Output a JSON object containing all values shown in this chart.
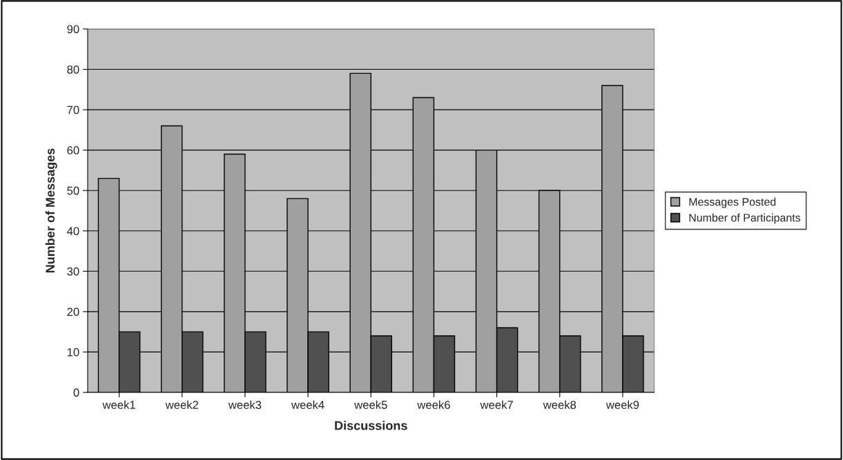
{
  "chart_data": {
    "type": "bar",
    "xlabel": "Discussions",
    "ylabel": "Number of Messages",
    "categories": [
      "week1",
      "week2",
      "week3",
      "week4",
      "week5",
      "week6",
      "week7",
      "week8",
      "week9"
    ],
    "series": [
      {
        "name": "Messages Posted",
        "color": "#a0a0a0",
        "values": [
          53,
          66,
          59,
          48,
          79,
          73,
          60,
          50,
          76
        ]
      },
      {
        "name": "Number of Participants",
        "color": "#505050",
        "values": [
          15,
          15,
          15,
          15,
          14,
          14,
          16,
          14,
          14
        ]
      }
    ],
    "ylim": [
      0,
      90
    ],
    "yticks": [
      0,
      10,
      20,
      30,
      40,
      50,
      60,
      70,
      80,
      90
    ],
    "grid": "y",
    "legend": "right"
  }
}
